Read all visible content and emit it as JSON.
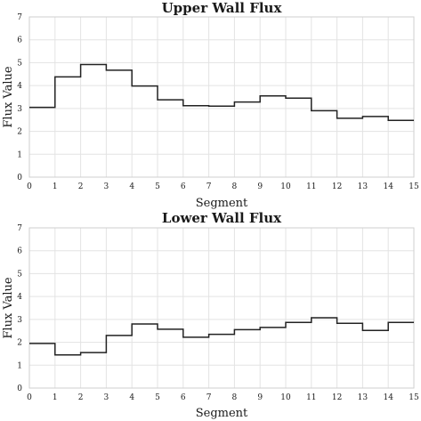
{
  "chart_data": [
    {
      "type": "line",
      "step": "post",
      "title": "Upper Wall Flux",
      "xlabel": "Segment",
      "ylabel": "Flux Value",
      "xlim": [
        0,
        15
      ],
      "ylim": [
        0,
        7
      ],
      "xticks": [
        "0",
        "1",
        "2",
        "3",
        "4",
        "5",
        "6",
        "7",
        "8",
        "9",
        "10",
        "11",
        "12",
        "13",
        "14",
        "15"
      ],
      "yticks": [
        "0",
        "1",
        "2",
        "3",
        "4",
        "5",
        "6",
        "7"
      ],
      "grid": true,
      "segments": [
        0,
        1,
        2,
        3,
        4,
        5,
        6,
        7,
        8,
        9,
        10,
        11,
        12,
        13,
        14
      ],
      "values": [
        3.05,
        4.38,
        4.92,
        4.67,
        3.98,
        3.38,
        3.12,
        3.1,
        3.28,
        3.55,
        3.45,
        2.9,
        2.57,
        2.65,
        2.48
      ],
      "color": "#222222"
    },
    {
      "type": "line",
      "step": "post",
      "title": "Lower Wall Flux",
      "xlabel": "Segment",
      "ylabel": "Flux Value",
      "xlim": [
        0,
        15
      ],
      "ylim": [
        0,
        7
      ],
      "xticks": [
        "0",
        "1",
        "2",
        "3",
        "4",
        "5",
        "6",
        "7",
        "8",
        "9",
        "10",
        "11",
        "12",
        "13",
        "14",
        "15"
      ],
      "yticks": [
        "0",
        "1",
        "2",
        "3",
        "4",
        "5",
        "6",
        "7"
      ],
      "grid": true,
      "segments": [
        0,
        1,
        2,
        3,
        4,
        5,
        6,
        7,
        8,
        9,
        10,
        11,
        12,
        13,
        14
      ],
      "values": [
        1.95,
        1.45,
        1.55,
        2.3,
        2.8,
        2.57,
        2.22,
        2.35,
        2.55,
        2.65,
        2.87,
        3.07,
        2.83,
        2.52,
        2.87
      ],
      "color": "#222222"
    }
  ]
}
